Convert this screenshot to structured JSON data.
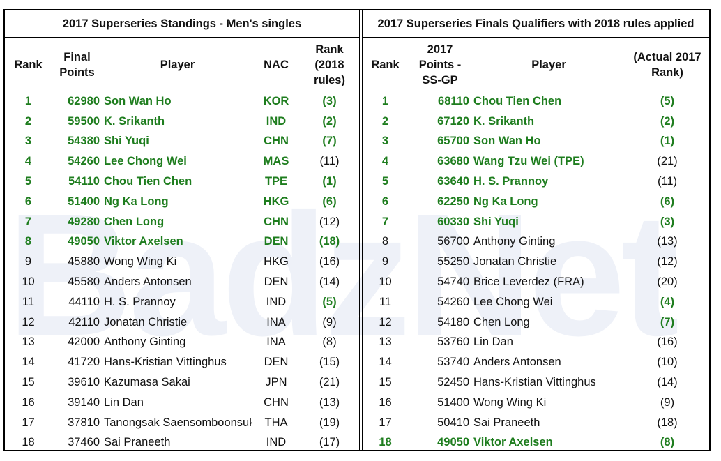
{
  "watermark": "BadzNet",
  "colors": {
    "highlight": "#1e7d1e",
    "text": "#111111"
  },
  "left": {
    "title": "2017 Superseries Standings - Men's singles",
    "headers": [
      "Rank",
      "Final Points",
      "Player",
      "NAC",
      "Rank (2018 rules)"
    ],
    "rows": [
      {
        "rank": "1",
        "points": "62980",
        "player": "Son Wan Ho",
        "nac": "KOR",
        "rank2018": "(3)",
        "hl": "row"
      },
      {
        "rank": "2",
        "points": "59500",
        "player": "K. Srikanth",
        "nac": "IND",
        "rank2018": "(2)",
        "hl": "row"
      },
      {
        "rank": "3",
        "points": "54380",
        "player": "Shi Yuqi",
        "nac": "CHN",
        "rank2018": "(7)",
        "hl": "row"
      },
      {
        "rank": "4",
        "points": "54260",
        "player": "Lee Chong Wei",
        "nac": "MAS",
        "rank2018": "(11)",
        "hl": "row-but-last"
      },
      {
        "rank": "5",
        "points": "54110",
        "player": "Chou Tien Chen",
        "nac": "TPE",
        "rank2018": "(1)",
        "hl": "row"
      },
      {
        "rank": "6",
        "points": "51400",
        "player": "Ng Ka Long",
        "nac": "HKG",
        "rank2018": "(6)",
        "hl": "row"
      },
      {
        "rank": "7",
        "points": "49280",
        "player": "Chen Long",
        "nac": "CHN",
        "rank2018": "(12)",
        "hl": "row-but-last"
      },
      {
        "rank": "8",
        "points": "49050",
        "player": "Viktor Axelsen",
        "nac": "DEN",
        "rank2018": "(18)",
        "hl": "row"
      },
      {
        "rank": "9",
        "points": "45880",
        "player": "Wong Wing Ki",
        "nac": "HKG",
        "rank2018": "(16)",
        "hl": "none"
      },
      {
        "rank": "10",
        "points": "45580",
        "player": "Anders Antonsen",
        "nac": "DEN",
        "rank2018": "(14)",
        "hl": "none"
      },
      {
        "rank": "11",
        "points": "44110",
        "player": "H. S. Prannoy",
        "nac": "IND",
        "rank2018": "(5)",
        "hl": "last"
      },
      {
        "rank": "12",
        "points": "42110",
        "player": "Jonatan Christie",
        "nac": "INA",
        "rank2018": "(9)",
        "hl": "none"
      },
      {
        "rank": "13",
        "points": "42000",
        "player": "Anthony Ginting",
        "nac": "INA",
        "rank2018": "(8)",
        "hl": "none"
      },
      {
        "rank": "14",
        "points": "41720",
        "player": "Hans-Kristian Vittinghus",
        "nac": "DEN",
        "rank2018": "(15)",
        "hl": "none"
      },
      {
        "rank": "15",
        "points": "39610",
        "player": "Kazumasa Sakai",
        "nac": "JPN",
        "rank2018": "(21)",
        "hl": "none"
      },
      {
        "rank": "16",
        "points": "39140",
        "player": "Lin Dan",
        "nac": "CHN",
        "rank2018": "(13)",
        "hl": "none"
      },
      {
        "rank": "17",
        "points": "37810",
        "player": "Tanongsak Saensomboonsuk",
        "nac": "THA",
        "rank2018": "(19)",
        "hl": "none"
      },
      {
        "rank": "18",
        "points": "37460",
        "player": "Sai Praneeth",
        "nac": "IND",
        "rank2018": "(17)",
        "hl": "none"
      }
    ]
  },
  "right": {
    "title": "2017 Superseries Finals Qualifiers with 2018 rules applied",
    "headers": [
      "Rank",
      "2017 Points - SS-GP",
      "Player",
      "(Actual 2017 Rank)"
    ],
    "rows": [
      {
        "rank": "1",
        "points": "68110",
        "player": "Chou Tien Chen",
        "actual": "(5)",
        "hl": "row"
      },
      {
        "rank": "2",
        "points": "67120",
        "player": "K. Srikanth",
        "actual": "(2)",
        "hl": "row"
      },
      {
        "rank": "3",
        "points": "65700",
        "player": "Son Wan Ho",
        "actual": "(1)",
        "hl": "row"
      },
      {
        "rank": "4",
        "points": "63680",
        "player": "Wang Tzu Wei (TPE)",
        "actual": "(21)",
        "hl": "row-but-last"
      },
      {
        "rank": "5",
        "points": "63640",
        "player": "H. S. Prannoy",
        "actual": "(11)",
        "hl": "row-but-last"
      },
      {
        "rank": "6",
        "points": "62250",
        "player": "Ng Ka Long",
        "actual": "(6)",
        "hl": "row"
      },
      {
        "rank": "7",
        "points": "60330",
        "player": "Shi Yuqi",
        "actual": "(3)",
        "hl": "row"
      },
      {
        "rank": "8",
        "points": "56700",
        "player": "Anthony Ginting",
        "actual": "(13)",
        "hl": "none"
      },
      {
        "rank": "9",
        "points": "55250",
        "player": "Jonatan Christie",
        "actual": "(12)",
        "hl": "none"
      },
      {
        "rank": "10",
        "points": "54740",
        "player": "Brice Leverdez (FRA)",
        "actual": "(20)",
        "hl": "none"
      },
      {
        "rank": "11",
        "points": "54260",
        "player": "Lee Chong Wei",
        "actual": "(4)",
        "hl": "last"
      },
      {
        "rank": "12",
        "points": "54180",
        "player": "Chen Long",
        "actual": "(7)",
        "hl": "last"
      },
      {
        "rank": "13",
        "points": "53760",
        "player": "Lin Dan",
        "actual": "(16)",
        "hl": "none"
      },
      {
        "rank": "14",
        "points": "53740",
        "player": "Anders Antonsen",
        "actual": "(10)",
        "hl": "none"
      },
      {
        "rank": "15",
        "points": "52450",
        "player": "Hans-Kristian Vittinghus",
        "actual": "(14)",
        "hl": "none"
      },
      {
        "rank": "16",
        "points": "51400",
        "player": "Wong Wing Ki",
        "actual": "(9)",
        "hl": "none"
      },
      {
        "rank": "17",
        "points": "50410",
        "player": "Sai Praneeth",
        "actual": "(18)",
        "hl": "none"
      },
      {
        "rank": "18",
        "points": "49050",
        "player": "Viktor Axelsen",
        "actual": "(8)",
        "hl": "row"
      }
    ]
  }
}
